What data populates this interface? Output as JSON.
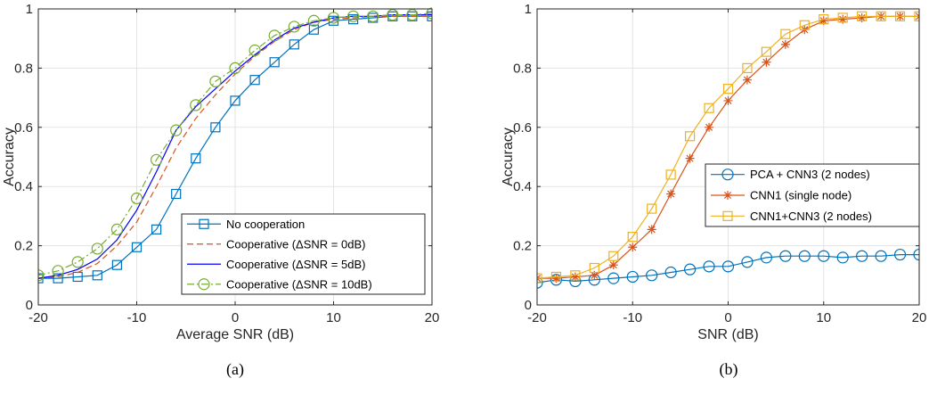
{
  "chart_data": [
    {
      "type": "line",
      "caption": "(a)",
      "xlabel": "Average SNR (dB)",
      "ylabel": "Accuracy",
      "xlim": [
        -20,
        20
      ],
      "ylim": [
        0,
        1
      ],
      "xticks": [
        -20,
        -10,
        0,
        10,
        20
      ],
      "yticks": [
        0,
        0.2,
        0.4,
        0.6,
        0.8,
        1
      ],
      "grid": true,
      "legend_position": "bottom-right",
      "series": [
        {
          "name": "No cooperation",
          "color": "#0072BD",
          "dash": "solid",
          "marker": "square",
          "x": [
            -20,
            -18,
            -16,
            -14,
            -12,
            -10,
            -8,
            -6,
            -4,
            -2,
            0,
            2,
            4,
            6,
            8,
            10,
            12,
            14,
            16,
            18,
            20
          ],
          "y": [
            0.09,
            0.09,
            0.095,
            0.1,
            0.135,
            0.195,
            0.255,
            0.375,
            0.495,
            0.6,
            0.69,
            0.76,
            0.82,
            0.88,
            0.93,
            0.96,
            0.965,
            0.97,
            0.975,
            0.975,
            0.975
          ]
        },
        {
          "name": "Cooperative (ΔSNR = 0dB)",
          "color": "#D95319",
          "dash": "dashed",
          "marker": "none",
          "x": [
            -20,
            -18,
            -16,
            -14,
            -12,
            -10,
            -8,
            -6,
            -4,
            -2,
            0,
            2,
            4,
            6,
            8,
            10,
            12,
            14,
            16,
            18,
            20
          ],
          "y": [
            0.09,
            0.095,
            0.11,
            0.14,
            0.2,
            0.28,
            0.4,
            0.53,
            0.63,
            0.71,
            0.78,
            0.84,
            0.89,
            0.93,
            0.955,
            0.965,
            0.97,
            0.975,
            0.975,
            0.975,
            0.975
          ]
        },
        {
          "name": "Cooperative (ΔSNR = 5dB)",
          "color": "#0000FF",
          "dash": "solid",
          "marker": "none",
          "x": [
            -20,
            -18,
            -16,
            -14,
            -12,
            -10,
            -8,
            -6,
            -4,
            -2,
            0,
            2,
            4,
            6,
            8,
            10,
            12,
            14,
            16,
            18,
            20
          ],
          "y": [
            0.09,
            0.1,
            0.12,
            0.155,
            0.22,
            0.32,
            0.45,
            0.59,
            0.67,
            0.73,
            0.79,
            0.845,
            0.895,
            0.935,
            0.955,
            0.97,
            0.975,
            0.975,
            0.98,
            0.98,
            0.98
          ]
        },
        {
          "name": "Cooperative (ΔSNR = 10dB)",
          "color": "#77AC30",
          "dash": "dashdot",
          "marker": "circle",
          "x": [
            -20,
            -18,
            -16,
            -14,
            -12,
            -10,
            -8,
            -6,
            -4,
            -2,
            0,
            2,
            4,
            6,
            8,
            10,
            12,
            14,
            16,
            18,
            20
          ],
          "y": [
            0.1,
            0.115,
            0.145,
            0.19,
            0.255,
            0.36,
            0.49,
            0.59,
            0.675,
            0.755,
            0.8,
            0.86,
            0.91,
            0.94,
            0.96,
            0.97,
            0.975,
            0.975,
            0.98,
            0.98,
            0.985
          ]
        }
      ]
    },
    {
      "type": "line",
      "caption": "(b)",
      "xlabel": "SNR (dB)",
      "ylabel": "Accuracy",
      "xlim": [
        -20,
        20
      ],
      "ylim": [
        0,
        1
      ],
      "xticks": [
        -20,
        -10,
        0,
        10,
        20
      ],
      "yticks": [
        0,
        0.2,
        0.4,
        0.6,
        0.8,
        1
      ],
      "grid": true,
      "legend_position": "right-center",
      "series": [
        {
          "name": "PCA + CNN3 (2 nodes)",
          "color": "#0072BD",
          "dash": "solid",
          "marker": "circle",
          "x": [
            -20,
            -18,
            -16,
            -14,
            -12,
            -10,
            -8,
            -6,
            -4,
            -2,
            0,
            2,
            4,
            6,
            8,
            10,
            12,
            14,
            16,
            18,
            20
          ],
          "y": [
            0.075,
            0.085,
            0.08,
            0.085,
            0.09,
            0.095,
            0.1,
            0.11,
            0.12,
            0.13,
            0.13,
            0.145,
            0.16,
            0.165,
            0.165,
            0.165,
            0.16,
            0.165,
            0.165,
            0.17,
            0.17
          ]
        },
        {
          "name": "CNN1 (single node)",
          "color": "#D95319",
          "dash": "solid",
          "marker": "asterisk",
          "x": [
            -20,
            -18,
            -16,
            -14,
            -12,
            -10,
            -8,
            -6,
            -4,
            -2,
            0,
            2,
            4,
            6,
            8,
            10,
            12,
            14,
            16,
            18,
            20
          ],
          "y": [
            0.09,
            0.09,
            0.095,
            0.1,
            0.135,
            0.195,
            0.255,
            0.375,
            0.495,
            0.6,
            0.69,
            0.76,
            0.82,
            0.88,
            0.93,
            0.96,
            0.965,
            0.97,
            0.975,
            0.975,
            0.975
          ]
        },
        {
          "name": "CNN1+CNN3 (2 nodes)",
          "color": "#EDB120",
          "dash": "solid",
          "marker": "square",
          "x": [
            -20,
            -18,
            -16,
            -14,
            -12,
            -10,
            -8,
            -6,
            -4,
            -2,
            0,
            2,
            4,
            6,
            8,
            10,
            12,
            14,
            16,
            18,
            20
          ],
          "y": [
            0.09,
            0.095,
            0.1,
            0.125,
            0.165,
            0.23,
            0.325,
            0.44,
            0.57,
            0.665,
            0.73,
            0.8,
            0.855,
            0.915,
            0.945,
            0.965,
            0.97,
            0.975,
            0.975,
            0.975,
            0.975
          ]
        }
      ]
    }
  ]
}
